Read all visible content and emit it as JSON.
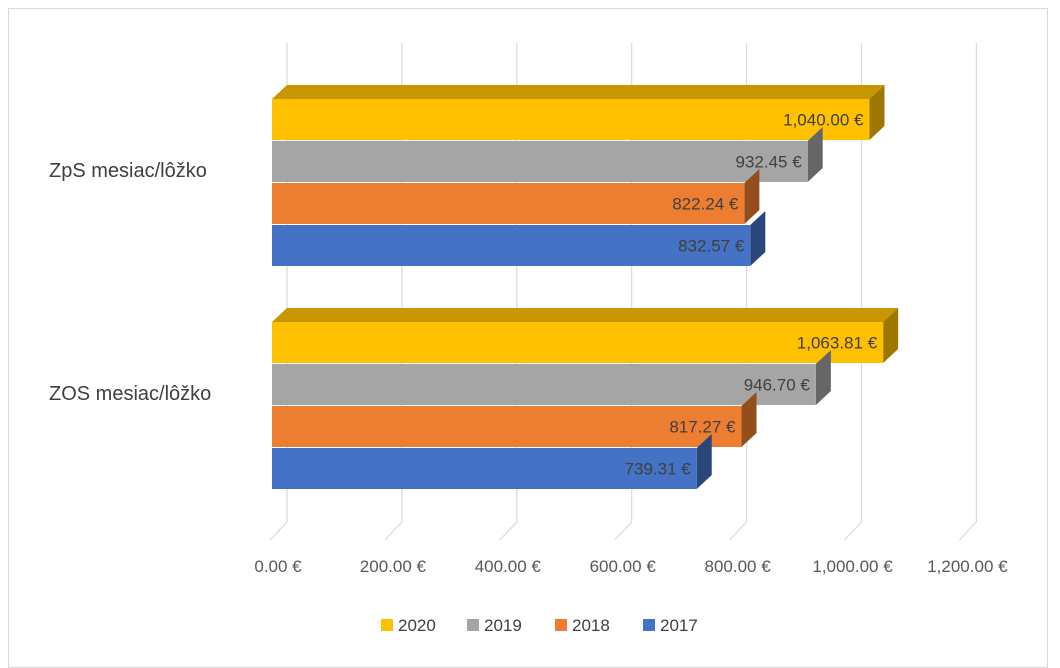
{
  "chart_data": {
    "type": "bar",
    "orientation": "horizontal",
    "style": "3d",
    "categories": [
      "ZpS mesiac/lôžko",
      "ZOS mesiac/lôžko"
    ],
    "series": [
      {
        "name": "2020",
        "color": "#FFC000",
        "values": [
          1040.0,
          1063.81
        ],
        "labels": [
          "1,040.00 €",
          "1,063.81 €"
        ]
      },
      {
        "name": "2019",
        "color": "#A5A5A5",
        "values": [
          932.45,
          946.7
        ],
        "labels": [
          "932.45 €",
          "946.70 €"
        ]
      },
      {
        "name": "2018",
        "color": "#ED7D31",
        "values": [
          822.24,
          817.27
        ],
        "labels": [
          "822.24 €",
          "817.27 €"
        ]
      },
      {
        "name": "2017",
        "color": "#4472C4",
        "values": [
          832.57,
          739.31
        ],
        "labels": [
          "832.57 €",
          "739.31 €"
        ]
      }
    ],
    "xlim": [
      0,
      1200
    ],
    "ticks": [
      0,
      200,
      400,
      600,
      800,
      1000,
      1200
    ],
    "tick_labels": [
      "0.00 €",
      "200.00 €",
      "400.00 €",
      "600.00 €",
      "800.00 €",
      "1,000.00 €",
      "1,200.00 €"
    ],
    "grid": true,
    "legend": "bottom",
    "legend_order": [
      "2020",
      "2019",
      "2018",
      "2017"
    ]
  }
}
